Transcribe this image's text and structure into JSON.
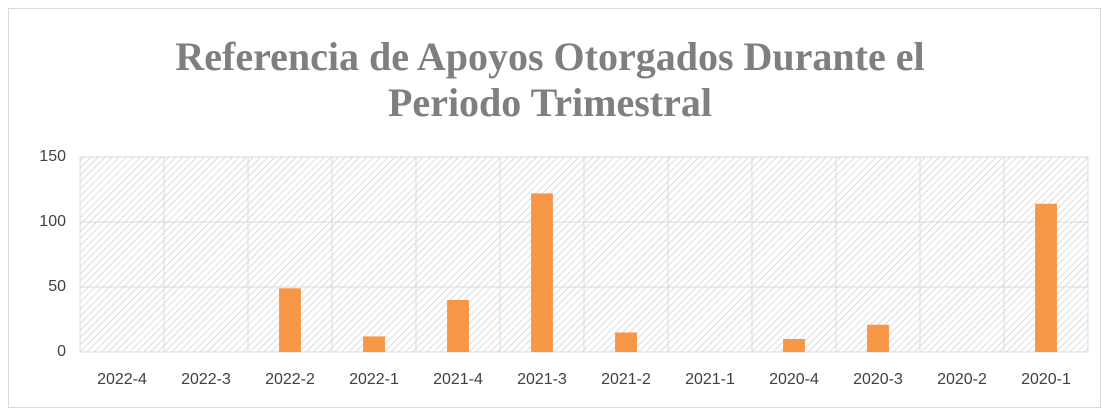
{
  "chart_data": {
    "type": "bar",
    "title": "Referencia de Apoyos Otorgados Durante el Periodo Trimestral",
    "categories": [
      "2022-4",
      "2022-3",
      "2022-2",
      "2022-1",
      "2021-4",
      "2021-3",
      "2021-2",
      "2021-1",
      "2020-4",
      "2020-3",
      "2020-2",
      "2020-1"
    ],
    "values": [
      0,
      0,
      49,
      12,
      40,
      122,
      15,
      0,
      10,
      21,
      0,
      114
    ],
    "color": "#f79646",
    "ylim": [
      0,
      150
    ],
    "yticks": [
      0,
      50,
      100,
      150
    ],
    "grid": true
  }
}
